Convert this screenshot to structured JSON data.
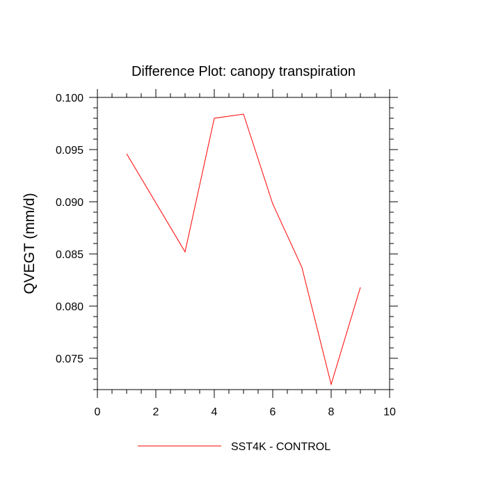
{
  "chart_data": {
    "type": "line",
    "title": "Difference Plot: canopy transpiration",
    "xlabel": "",
    "ylabel": "QVEGT  (mm/d)",
    "xlim": [
      0,
      10
    ],
    "ylim": [
      0.072,
      0.1
    ],
    "x_major_ticks": [
      0,
      2,
      4,
      6,
      8,
      10
    ],
    "x_tick_labels": [
      "0",
      "2",
      "4",
      "6",
      "8",
      "10"
    ],
    "y_major_ticks": [
      0.075,
      0.08,
      0.085,
      0.09,
      0.095,
      0.1
    ],
    "y_tick_labels": [
      "0.075",
      "0.080",
      "0.085",
      "0.090",
      "0.095",
      "0.100"
    ],
    "grid": false,
    "legend_position": "bottom-center",
    "series": [
      {
        "name": "SST4K - CONTROL",
        "color": "#ff0000",
        "x": [
          1,
          3,
          4,
          5,
          6,
          7,
          8,
          9
        ],
        "values": [
          0.0946,
          0.0852,
          0.098,
          0.0984,
          0.0898,
          0.0837,
          0.0725,
          0.0818
        ]
      }
    ]
  }
}
